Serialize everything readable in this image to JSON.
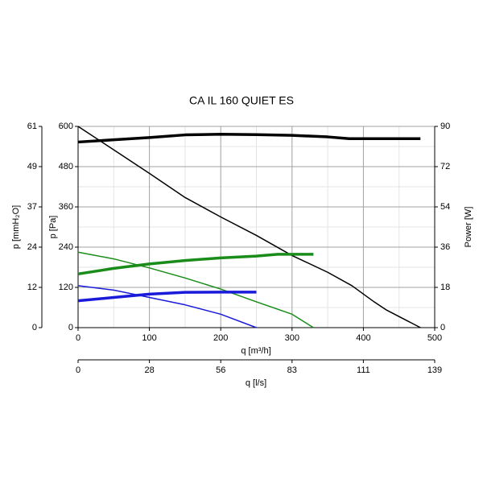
{
  "chart_data": {
    "type": "line",
    "title": "CA IL 160 QUIET ES",
    "xlabel": "q [m³/h]",
    "ylabel": "p [Pa]",
    "y2label": "Power [W]",
    "y3label": "p [mmH₂O]",
    "x2label": "q [l/s]",
    "xlim": [
      0,
      500
    ],
    "xticks": [
      0,
      100,
      200,
      300,
      400,
      500
    ],
    "ylim": [
      0,
      600
    ],
    "yticks": [
      0,
      120,
      240,
      360,
      480,
      600
    ],
    "y2lim": [
      0,
      90
    ],
    "y2ticks": [
      0,
      18,
      36,
      54,
      72,
      90
    ],
    "y3lim": [
      0,
      61.18
    ],
    "y3ticks": [
      0,
      {
        "value": 12.24,
        "label": "12"
      },
      {
        "value": 24.47,
        "label": "24"
      },
      {
        "value": 36.71,
        "label": "37"
      },
      {
        "value": 48.95,
        "label": "49"
      },
      {
        "value": 61.18,
        "label": "61"
      }
    ],
    "x2lim": [
      0,
      138.89
    ],
    "x2ticks": [
      0,
      {
        "value": 27.78,
        "label": "28"
      },
      {
        "value": 55.56,
        "label": "56"
      },
      {
        "value": 83.33,
        "label": "83"
      },
      {
        "value": 111.11,
        "label": "111"
      },
      {
        "value": 138.89,
        "label": "139"
      }
    ],
    "grid": true,
    "minor_grid": true,
    "series": [
      {
        "color": "#000000",
        "width": "thin",
        "x": [
          0,
          50,
          100,
          150,
          200,
          250,
          300,
          350,
          384,
          415,
          432,
          480
        ],
        "values": [
          600,
          530,
          460,
          388,
          330,
          275,
          215,
          165,
          125,
          77,
          53,
          0
        ]
      },
      {
        "color": "#000000",
        "width": "thick",
        "axis": "y2",
        "x": [
          0,
          50,
          100,
          150,
          200,
          250,
          300,
          350,
          380,
          480
        ],
        "values": [
          83,
          84,
          85,
          86.2,
          86.5,
          86.3,
          86,
          85.3,
          84.5,
          84.5
        ]
      },
      {
        "color": "#1a8c1a",
        "width": "thin",
        "x": [
          0,
          50,
          100,
          150,
          200,
          250,
          300,
          330
        ],
        "values": [
          225,
          205,
          178,
          148,
          115,
          77,
          40,
          0
        ]
      },
      {
        "color": "#1a8c1a",
        "width": "thick",
        "axis": "y2",
        "x": [
          0,
          50,
          100,
          150,
          200,
          250,
          280,
          330
        ],
        "values": [
          24,
          26.5,
          28.5,
          30,
          31.2,
          32,
          32.8,
          32.8
        ]
      },
      {
        "color": "#1a1adb",
        "width": "thin",
        "x": [
          0,
          50,
          100,
          150,
          200,
          250
        ],
        "values": [
          125,
          112,
          90,
          68,
          40,
          0
        ]
      },
      {
        "color": "#1a1adb",
        "width": "thick",
        "axis": "y2",
        "x": [
          0,
          50,
          100,
          150,
          200,
          250
        ],
        "values": [
          12,
          13.5,
          15,
          15.8,
          15.9,
          15.9
        ]
      }
    ]
  }
}
